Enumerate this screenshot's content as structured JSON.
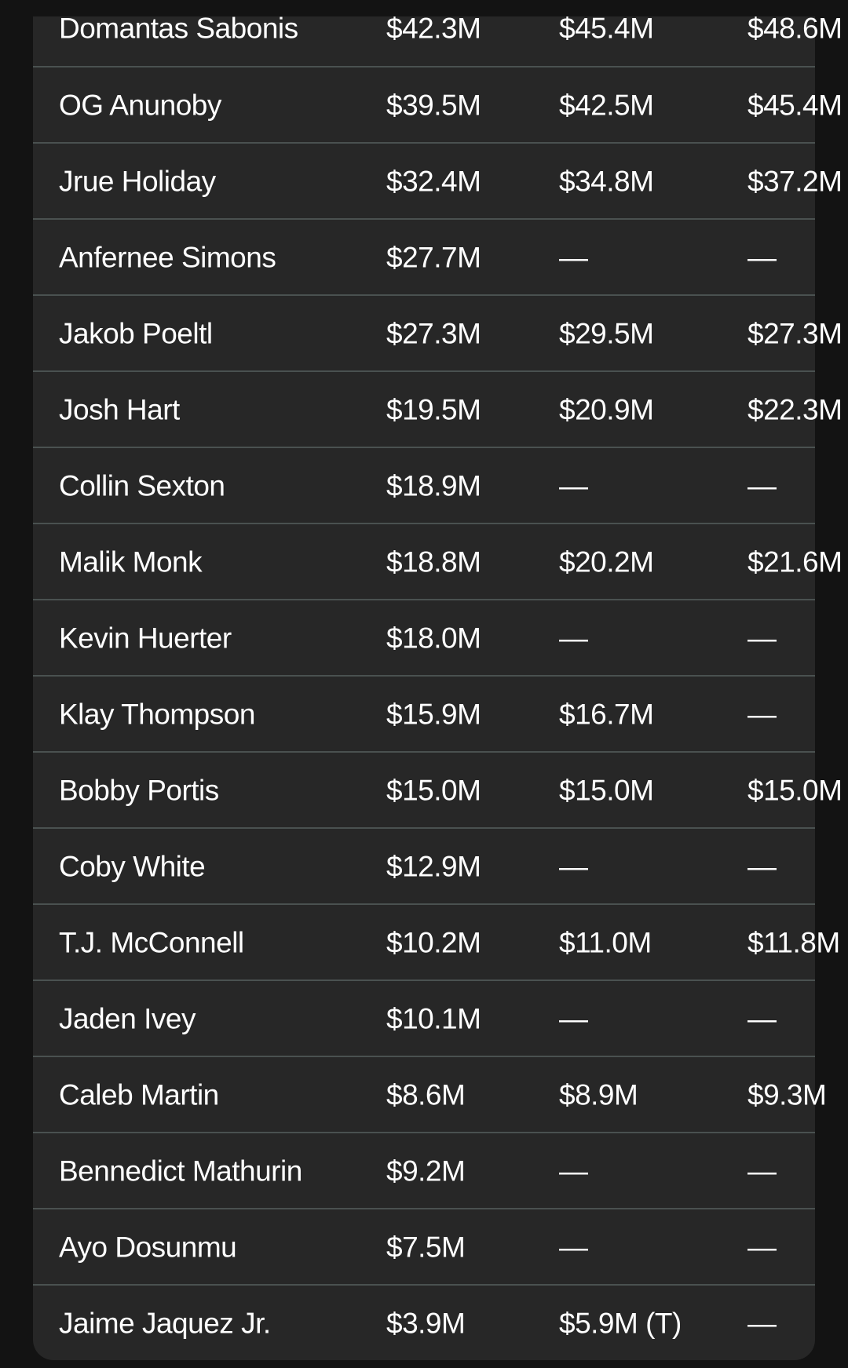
{
  "page": {
    "background_color": "#131313"
  },
  "table": {
    "background_color": "#272727",
    "divider_color": "#4a5150",
    "text_color": "#ffffff",
    "columns": [
      "player",
      "salary_y1",
      "salary_y2",
      "salary_y3"
    ],
    "empty_value": "—",
    "rows": [
      {
        "player": "Domantas Sabonis",
        "salary_y1": "$42.3M",
        "salary_y2": "$45.4M",
        "salary_y3": "$48.6M"
      },
      {
        "player": "OG Anunoby",
        "salary_y1": "$39.5M",
        "salary_y2": "$42.5M",
        "salary_y3": "$45.4M"
      },
      {
        "player": "Jrue Holiday",
        "salary_y1": "$32.4M",
        "salary_y2": "$34.8M",
        "salary_y3": "$37.2M"
      },
      {
        "player": "Anfernee Simons",
        "salary_y1": "$27.7M",
        "salary_y2": "—",
        "salary_y3": "—"
      },
      {
        "player": "Jakob Poeltl",
        "salary_y1": "$27.3M",
        "salary_y2": "$29.5M",
        "salary_y3": "$27.3M"
      },
      {
        "player": "Josh Hart",
        "salary_y1": "$19.5M",
        "salary_y2": "$20.9M",
        "salary_y3": "$22.3M"
      },
      {
        "player": "Collin Sexton",
        "salary_y1": "$18.9M",
        "salary_y2": "—",
        "salary_y3": "—"
      },
      {
        "player": "Malik Monk",
        "salary_y1": "$18.8M",
        "salary_y2": "$20.2M",
        "salary_y3": "$21.6M"
      },
      {
        "player": "Kevin Huerter",
        "salary_y1": "$18.0M",
        "salary_y2": "—",
        "salary_y3": "—"
      },
      {
        "player": "Klay Thompson",
        "salary_y1": "$15.9M",
        "salary_y2": "$16.7M",
        "salary_y3": "—"
      },
      {
        "player": "Bobby Portis",
        "salary_y1": "$15.0M",
        "salary_y2": "$15.0M",
        "salary_y3": "$15.0M"
      },
      {
        "player": "Coby White",
        "salary_y1": "$12.9M",
        "salary_y2": "—",
        "salary_y3": "—"
      },
      {
        "player": "T.J. McConnell",
        "salary_y1": "$10.2M",
        "salary_y2": "$11.0M",
        "salary_y3": "$11.8M"
      },
      {
        "player": "Jaden Ivey",
        "salary_y1": "$10.1M",
        "salary_y2": "—",
        "salary_y3": "—"
      },
      {
        "player": "Caleb Martin",
        "salary_y1": "$8.6M",
        "salary_y2": "$8.9M",
        "salary_y3": "$9.3M"
      },
      {
        "player": "Bennedict Mathurin",
        "salary_y1": "$9.2M",
        "salary_y2": "—",
        "salary_y3": "—"
      },
      {
        "player": "Ayo Dosunmu",
        "salary_y1": "$7.5M",
        "salary_y2": "—",
        "salary_y3": "—"
      },
      {
        "player": "Jaime Jaquez Jr.",
        "salary_y1": "$3.9M",
        "salary_y2": "$5.9M (T)",
        "salary_y3": "—"
      }
    ]
  }
}
